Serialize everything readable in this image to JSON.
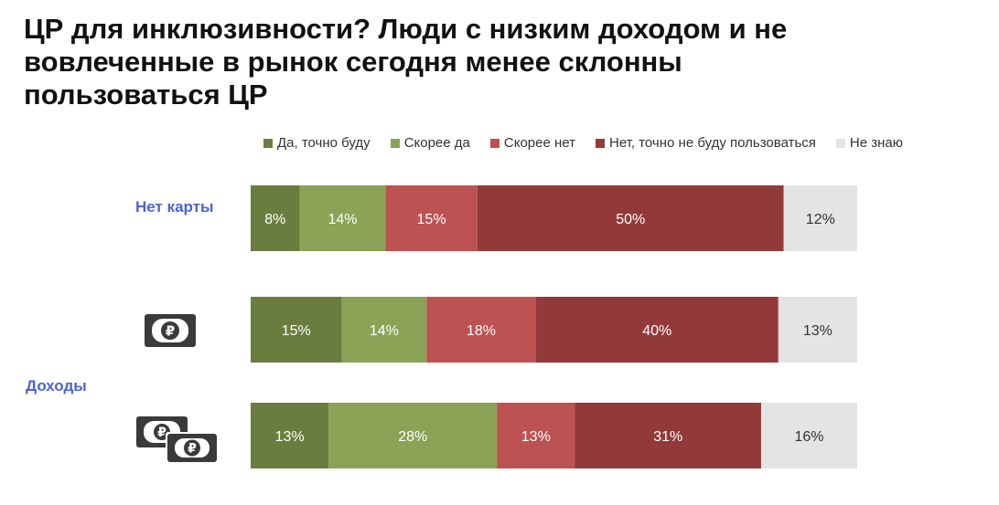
{
  "title": "ЦР для инклюзивности? Люди с низким доходом и не вовлеченные в рынок сегодня менее склонны пользоваться ЦР",
  "group_label": "Доходы",
  "colors": {
    "definitely_yes": "#6b7d3e",
    "rather_yes": "#8aa356",
    "rather_no": "#bd5252",
    "definitely_no": "#923a3a",
    "dont_know": "#e4e4e4"
  },
  "icons": [
    "ruble-banknote-icon",
    "two-ruble-banknotes-icon"
  ],
  "chart_data": {
    "type": "bar",
    "orientation": "horizontal",
    "stacked": true,
    "percent": true,
    "categories": [
      "Нет карты",
      "",
      ""
    ],
    "series": [
      {
        "name": "Да, точно буду",
        "values": [
          8,
          15,
          13
        ],
        "labels": [
          "8%",
          "15%",
          "13%"
        ]
      },
      {
        "name": "Скорее да",
        "values": [
          14,
          14,
          28
        ],
        "labels": [
          "14%",
          "14%",
          "28%"
        ]
      },
      {
        "name": "Скорее нет",
        "values": [
          15,
          18,
          13
        ],
        "labels": [
          "15%",
          "18%",
          "13%"
        ]
      },
      {
        "name": "Нет, точно не буду пользоваться",
        "values": [
          50,
          40,
          31
        ],
        "labels": [
          "50%",
          "40%",
          "31%"
        ]
      },
      {
        "name": "Не знаю",
        "values": [
          12,
          13,
          16
        ],
        "labels": [
          "12%",
          "13%",
          "16%"
        ]
      }
    ],
    "legend_position": "top",
    "grid": false
  }
}
